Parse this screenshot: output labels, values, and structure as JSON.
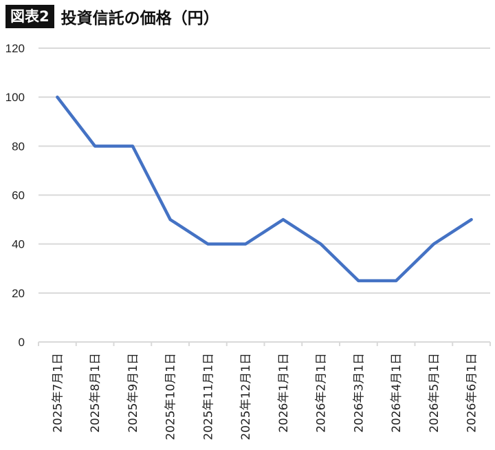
{
  "header": {
    "badge": "図表2",
    "title": "投資信託の価格（円）"
  },
  "chart_data": {
    "type": "line",
    "categories": [
      "2025年7月1日",
      "2025年8月1日",
      "2025年9月1日",
      "2025年10月1日",
      "2025年11月1日",
      "2025年12月1日",
      "2026年1月1日",
      "2026年2月1日",
      "2026年3月1日",
      "2026年4月1日",
      "2026年5月1日",
      "2026年6月1日"
    ],
    "series": [
      {
        "values": [
          100,
          80,
          80,
          50,
          40,
          40,
          50,
          40,
          25,
          25,
          40,
          50
        ]
      }
    ],
    "ylim": [
      0,
      120
    ],
    "yticks": [
      0,
      20,
      40,
      60,
      80,
      100,
      120
    ],
    "grid": true,
    "legend": "none",
    "line_color": "#4472C4",
    "grid_color": "#d9d9d9"
  }
}
